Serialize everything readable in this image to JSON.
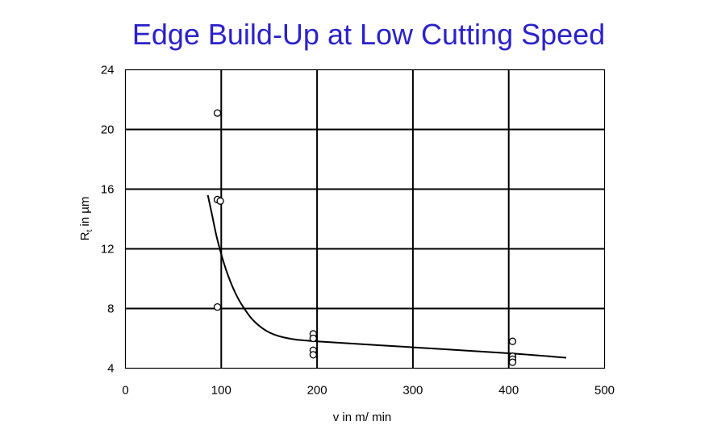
{
  "chart_data": {
    "type": "scatter",
    "title": "Edge Build-Up at Low Cutting Speed",
    "xlabel": "v in m/ min",
    "ylabel": {
      "main": "R",
      "subscript": "t",
      "rest": " in µm"
    },
    "xlim": [
      0,
      500
    ],
    "ylim": [
      4,
      24
    ],
    "xticks": [
      0,
      100,
      200,
      300,
      400,
      500
    ],
    "yticks": [
      4,
      8,
      12,
      16,
      20,
      24
    ],
    "grid": true,
    "series": [
      {
        "type": "scatter",
        "marker": "open-circle",
        "points": [
          [
            96,
            21.1
          ],
          [
            96,
            15.3
          ],
          [
            99,
            15.2
          ],
          [
            96,
            8.1
          ],
          [
            196,
            6.3
          ],
          [
            196,
            6.0
          ],
          [
            196,
            5.2
          ],
          [
            196,
            4.9
          ],
          [
            404,
            5.8
          ],
          [
            404,
            4.8
          ],
          [
            404,
            4.6
          ],
          [
            404,
            4.4
          ]
        ]
      },
      {
        "type": "line",
        "style": "smooth",
        "points": [
          [
            86,
            15.6
          ],
          [
            90,
            14.4
          ],
          [
            96,
            12.6
          ],
          [
            105,
            10.6
          ],
          [
            115,
            9.0
          ],
          [
            125,
            7.9
          ],
          [
            135,
            7.1
          ],
          [
            150,
            6.4
          ],
          [
            170,
            6.0
          ],
          [
            200,
            5.8
          ],
          [
            300,
            5.4
          ],
          [
            400,
            5.0
          ],
          [
            460,
            4.7
          ]
        ]
      }
    ],
    "colors": {
      "title": "#2b22c8",
      "axes": "#000000",
      "marker_fill": "#ffffff"
    }
  }
}
